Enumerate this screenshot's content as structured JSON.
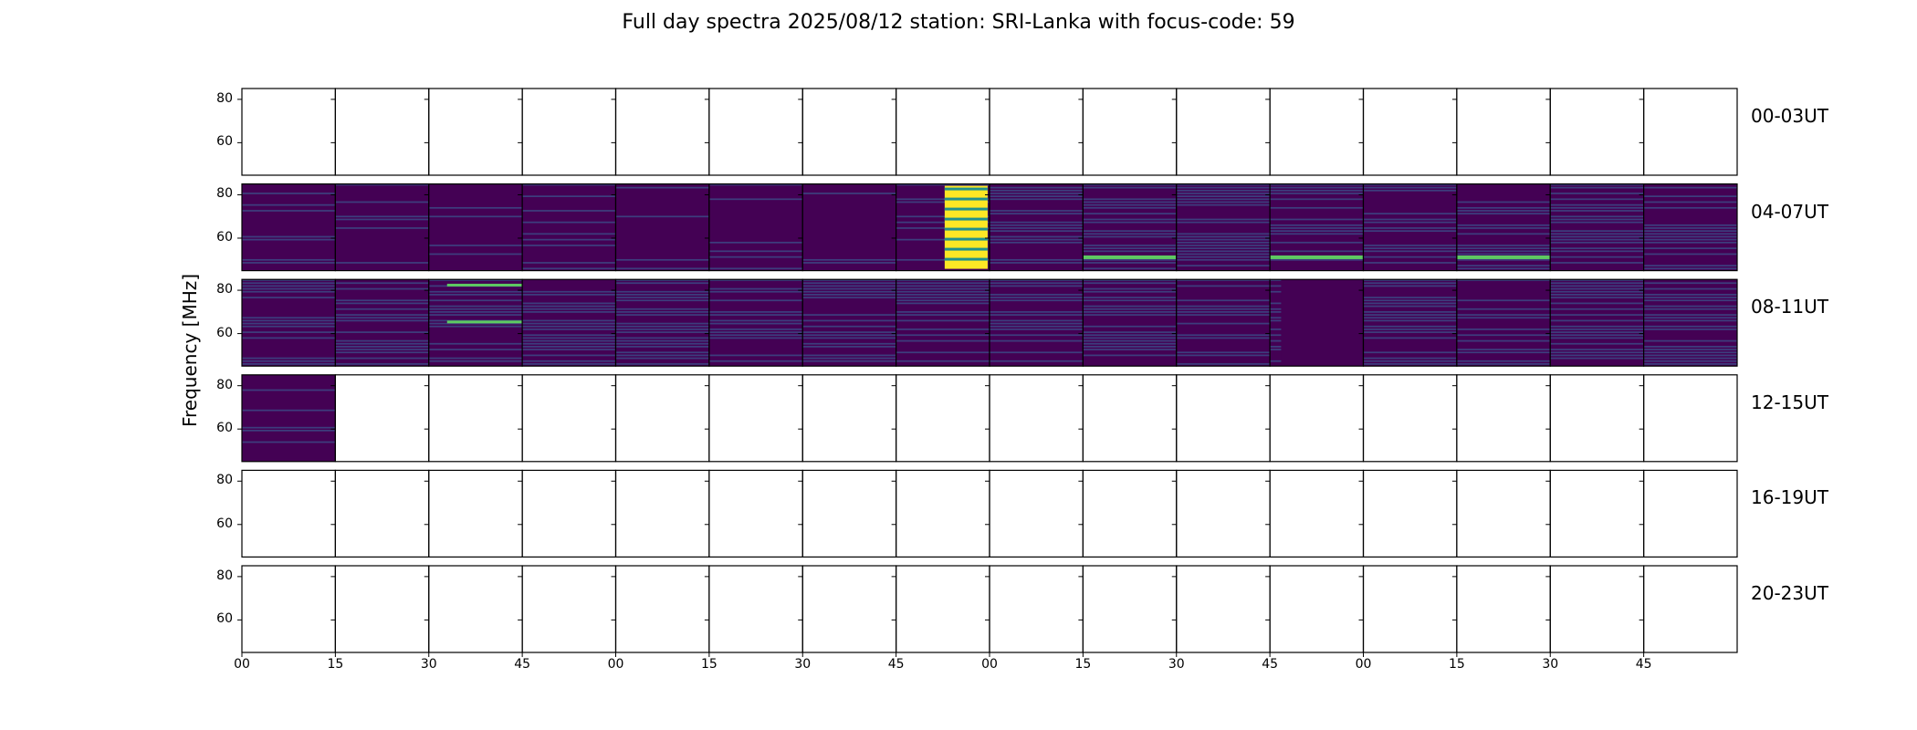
{
  "chart_data": {
    "type": "heatmap",
    "title": "Full day spectra 2025/08/12 station: SRI-Lanka with focus-code: 59",
    "ylabel": "Frequency [MHz]",
    "yticks": [
      80,
      60
    ],
    "ylim": [
      45,
      85
    ],
    "xticks": [
      "00",
      "15",
      "30",
      "45",
      "00",
      "15",
      "30",
      "45",
      "00",
      "15",
      "30",
      "45",
      "00",
      "15",
      "30",
      "45"
    ],
    "colormap": [
      "#440154",
      "#3b528b",
      "#21918c",
      "#5ec962",
      "#fde725"
    ],
    "rows": [
      {
        "label": "00-03UT",
        "panels": [
          0,
          0,
          0,
          0,
          0,
          0,
          0,
          0,
          0,
          0,
          0,
          0,
          0,
          0,
          0,
          0
        ]
      },
      {
        "label": "04-07UT",
        "panels": [
          1,
          1,
          1,
          1,
          1,
          1,
          1,
          1,
          1,
          1,
          1,
          1,
          1,
          1,
          1,
          1
        ]
      },
      {
        "label": "08-11UT",
        "panels": [
          1,
          1,
          1,
          1,
          1,
          1,
          1,
          1,
          1,
          1,
          1,
          1,
          1,
          1,
          1,
          1
        ]
      },
      {
        "label": "12-15UT",
        "panels": [
          1,
          0,
          0,
          0,
          0,
          0,
          0,
          0,
          0,
          0,
          0,
          0,
          0,
          0,
          0,
          0
        ]
      },
      {
        "label": "16-19UT",
        "panels": [
          0,
          0,
          0,
          0,
          0,
          0,
          0,
          0,
          0,
          0,
          0,
          0,
          0,
          0,
          0,
          0
        ]
      },
      {
        "label": "20-23UT",
        "panels": [
          0,
          0,
          0,
          0,
          0,
          0,
          0,
          0,
          0,
          0,
          0,
          0,
          0,
          0,
          0,
          0
        ]
      }
    ]
  }
}
